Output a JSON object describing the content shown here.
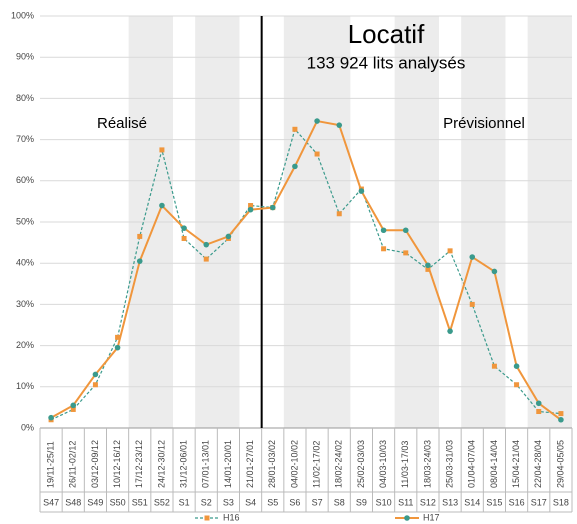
{
  "chart_data": {
    "type": "line",
    "title": "Locatif",
    "subtitle": "133 924 lits analysés",
    "annotations": [
      "Réalisé",
      "Prévisionnel"
    ],
    "categories": [
      "19/11-25/11",
      "26/11-02/12",
      "03/12-09/12",
      "10/12-16/12",
      "17/12-23/12",
      "24/12-30/12",
      "31/12-06/01",
      "07/01-13/01",
      "14/01-20/01",
      "21/01-27/01",
      "28/01-03/02",
      "04/02-10/02",
      "11/02-17/02",
      "18/02-24/02",
      "25/02-03/03",
      "04/03-10/03",
      "11/03-17/03",
      "18/03-24/03",
      "25/03-31/03",
      "01/04-07/04",
      "08/04-14/04",
      "15/04-21/04",
      "22/04-28/04",
      "29/04-05/05"
    ],
    "weeks": [
      "S47",
      "S48",
      "S49",
      "S50",
      "S51",
      "S52",
      "S1",
      "S2",
      "S3",
      "S4",
      "S5",
      "S6",
      "S7",
      "S8",
      "S9",
      "S10",
      "S11",
      "S12",
      "S13",
      "S14",
      "S15",
      "S16",
      "S17",
      "S18"
    ],
    "series": [
      {
        "name": "H16",
        "color": "#3a9a8c",
        "marker_color": "#f0963c",
        "marker": "square",
        "dashed": true,
        "values": [
          2,
          4.5,
          10.5,
          22,
          46.5,
          67.5,
          46,
          41,
          46,
          54,
          53.5,
          72.5,
          66.5,
          52,
          58,
          43.5,
          42.5,
          38.5,
          43,
          30,
          15,
          10.5,
          4,
          3.5
        ]
      },
      {
        "name": "H17",
        "color": "#f0963c",
        "marker_color": "#3a9a8c",
        "marker": "circle",
        "dashed": false,
        "values": [
          2.5,
          5.5,
          13,
          19.5,
          40.5,
          54,
          48.5,
          44.5,
          46.5,
          53,
          53.5,
          63.5,
          74.5,
          73.5,
          57.5,
          48,
          48,
          39.5,
          23.5,
          41.5,
          38,
          15,
          6,
          2
        ]
      }
    ],
    "ylim": [
      0,
      100
    ],
    "yticks": [
      {
        "value": 0,
        "label": "0%"
      },
      {
        "value": 10,
        "label": "10%"
      },
      {
        "value": 20,
        "label": "20%"
      },
      {
        "value": 30,
        "label": "30%"
      },
      {
        "value": 40,
        "label": "40%"
      },
      {
        "value": 50,
        "label": "50%"
      },
      {
        "value": 60,
        "label": "60%"
      },
      {
        "value": 70,
        "label": "70%"
      },
      {
        "value": 80,
        "label": "80%"
      },
      {
        "value": 90,
        "label": "90%"
      },
      {
        "value": 100,
        "label": "100%"
      }
    ],
    "grid": true
  }
}
